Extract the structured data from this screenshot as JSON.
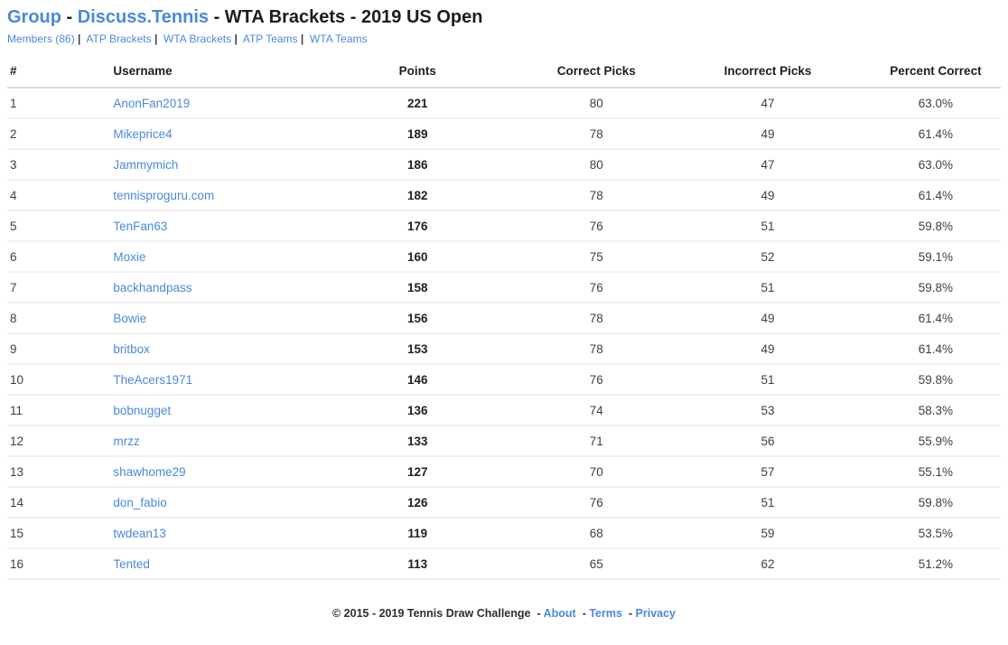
{
  "colors": {
    "link_blue": "#4a89dc"
  },
  "title": {
    "group": "Group",
    "site": "Discuss.Tennis",
    "separator": " - ",
    "suffix": "WTA Brackets - 2019 US Open"
  },
  "nav": {
    "separator": " | ",
    "items": [
      "Members (86)",
      "ATP Brackets",
      "WTA Brackets",
      "ATP Teams",
      "WTA Teams"
    ]
  },
  "table": {
    "columns": [
      "#",
      "Username",
      "Points",
      "Correct Picks",
      "Incorrect Picks",
      "Percent Correct"
    ],
    "rows": [
      {
        "rank": "1",
        "username": "AnonFan2019",
        "points": "221",
        "correct": "80",
        "incorrect": "47",
        "percent": "63.0%"
      },
      {
        "rank": "2",
        "username": "Mikeprice4",
        "points": "189",
        "correct": "78",
        "incorrect": "49",
        "percent": "61.4%"
      },
      {
        "rank": "3",
        "username": "Jammymich",
        "points": "186",
        "correct": "80",
        "incorrect": "47",
        "percent": "63.0%"
      },
      {
        "rank": "4",
        "username": "tennisproguru.com",
        "points": "182",
        "correct": "78",
        "incorrect": "49",
        "percent": "61.4%"
      },
      {
        "rank": "5",
        "username": "TenFan63",
        "points": "176",
        "correct": "76",
        "incorrect": "51",
        "percent": "59.8%"
      },
      {
        "rank": "6",
        "username": "Moxie",
        "points": "160",
        "correct": "75",
        "incorrect": "52",
        "percent": "59.1%"
      },
      {
        "rank": "7",
        "username": "backhandpass",
        "points": "158",
        "correct": "76",
        "incorrect": "51",
        "percent": "59.8%"
      },
      {
        "rank": "8",
        "username": "Bowie",
        "points": "156",
        "correct": "78",
        "incorrect": "49",
        "percent": "61.4%"
      },
      {
        "rank": "9",
        "username": "britbox",
        "points": "153",
        "correct": "78",
        "incorrect": "49",
        "percent": "61.4%"
      },
      {
        "rank": "10",
        "username": "TheAcers1971",
        "points": "146",
        "correct": "76",
        "incorrect": "51",
        "percent": "59.8%"
      },
      {
        "rank": "11",
        "username": "bobnugget",
        "points": "136",
        "correct": "74",
        "incorrect": "53",
        "percent": "58.3%"
      },
      {
        "rank": "12",
        "username": "mrzz",
        "points": "133",
        "correct": "71",
        "incorrect": "56",
        "percent": "55.9%"
      },
      {
        "rank": "13",
        "username": "shawhome29",
        "points": "127",
        "correct": "70",
        "incorrect": "57",
        "percent": "55.1%"
      },
      {
        "rank": "14",
        "username": "don_fabio",
        "points": "126",
        "correct": "76",
        "incorrect": "51",
        "percent": "59.8%"
      },
      {
        "rank": "15",
        "username": "twdean13",
        "points": "119",
        "correct": "68",
        "incorrect": "59",
        "percent": "53.5%"
      },
      {
        "rank": "16",
        "username": "Tented",
        "points": "113",
        "correct": "65",
        "incorrect": "62",
        "percent": "51.2%"
      }
    ]
  },
  "footer": {
    "copyright": "© 2015 - 2019 Tennis Draw Challenge",
    "separator": " - ",
    "links": [
      "About",
      "Terms",
      "Privacy"
    ]
  }
}
